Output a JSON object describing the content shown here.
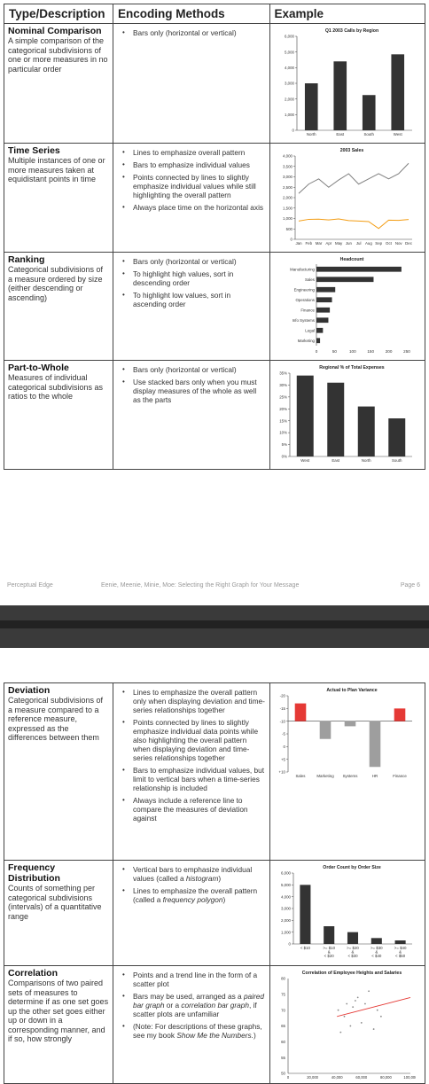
{
  "header": {
    "type": "Type/Description",
    "encoding": "Encoding Methods",
    "example": "Example"
  },
  "rows1": [
    {
      "name": "Nominal Comparison",
      "desc": "A simple comparison of the categorical subdivisions of one or more measures in no particular order",
      "methods": [
        "Bars only (horizontal or vertical)"
      ]
    },
    {
      "name": "Time Series",
      "desc": "Multiple instances of one or more measures taken at equidistant points in time",
      "methods": [
        "Lines to emphasize overall pattern",
        "Bars to emphasize individual values",
        "Points connected by lines to slightly emphasize individual values while still highlighting the overall pattern",
        "Always place time on the horizontal axis"
      ]
    },
    {
      "name": "Ranking",
      "desc": "Categorical subdivisions of a measure ordered by size (either descending or ascending)",
      "methods": [
        "Bars only (horizontal or vertical)",
        "To highlight high values, sort in descending order",
        "To highlight low values, sort in ascending order"
      ]
    },
    {
      "name": "Part-to-Whole",
      "desc": "Measures of individual categorical subdivisions as ratios to the whole",
      "methods": [
        "Bars only (horizontal or vertical)",
        "Use stacked bars only when you must display measures of the whole as well as the parts"
      ]
    }
  ],
  "rows2": [
    {
      "name": "Deviation",
      "desc": "Categorical subdivisions of a measure compared to a reference measure, expressed as the differences between them",
      "methods": [
        "Lines to emphasize the overall pattern only when displaying deviation and time-series relationships together",
        "Points connected by lines to slightly emphasize individual data points while also highlighting the overall pattern when displaying deviation and time-series relationships together",
        "Bars to emphasize individual values, but limit to vertical bars when a time-series relationship is included",
        "Always include a reference line to compare the measures of deviation against"
      ]
    },
    {
      "name": "Frequency Distribution",
      "desc": "Counts of something per categorical subdivisions (intervals) of a quantitative range",
      "methods": [
        "Vertical bars to emphasize individual values (called a histogram)",
        "Lines to emphasize the overall pattern (called a frequency polygon)"
      ]
    },
    {
      "name": "Correlation",
      "desc": "Comparisons of two paired sets of measures to determine if as one set goes up the other set goes either up or down in a corresponding manner, and if so, how strongly",
      "methods": [
        "Points and a trend line in the form of a scatter plot",
        "Bars may be used, arranged as a paired bar graph or a correlation bar graph, if scatter plots are unfamiliar",
        "(Note: For descriptions of these graphs, see my book Show Me the Numbers.)"
      ]
    }
  ],
  "footer": {
    "left": "Perceptual Edge",
    "center": "Eenie, Meenie, Minie, Moe: Selecting the Right Graph for Your Message",
    "right": "Page 6"
  },
  "chart_data": [
    {
      "type": "bar",
      "title": "Q1 2003 Calls by Region",
      "categories": [
        "North",
        "East",
        "South",
        "West"
      ],
      "values": [
        3000,
        4400,
        2250,
        4850
      ],
      "ylim": [
        0,
        6000
      ],
      "yticks": [
        "0",
        "1,000",
        "2,000",
        "3,000",
        "4,000",
        "5,000",
        "6,000"
      ],
      "color": "#333333"
    },
    {
      "type": "line",
      "title": "2003 Sales",
      "categories": [
        "Jan",
        "Feb",
        "Mar",
        "Apr",
        "May",
        "Jun",
        "Jul",
        "Aug",
        "Sep",
        "Oct",
        "Nov",
        "Dec"
      ],
      "series": [
        {
          "values": [
            2200,
            2650,
            2900,
            2500,
            2850,
            3150,
            2650,
            2900,
            3150,
            2900,
            3150,
            3650
          ],
          "color": "#808080"
        },
        {
          "values": [
            880,
            960,
            970,
            930,
            980,
            900,
            880,
            850,
            520,
            920,
            910,
            950
          ],
          "color": "#f39c12"
        }
      ],
      "ylim": [
        0,
        4000
      ],
      "yticks": [
        "0",
        "500",
        "1,000",
        "1,500",
        "2,000",
        "2,500",
        "3,000",
        "3,500",
        "4,000"
      ]
    },
    {
      "type": "bar",
      "orientation": "horizontal",
      "title": "Headcount",
      "categories": [
        "Manufacturing",
        "Sales",
        "Engineering",
        "Operations",
        "Finance",
        "Info Systems",
        "Legal",
        "Marketing"
      ],
      "values": [
        235,
        158,
        52,
        43,
        37,
        33,
        18,
        10
      ],
      "xlim": [
        0,
        250
      ],
      "xticks": [
        "0",
        "50",
        "100",
        "150",
        "200",
        "250"
      ],
      "color": "#333333"
    },
    {
      "type": "bar",
      "title": "Regional % of Total Expenses",
      "categories": [
        "West",
        "East",
        "North",
        "South"
      ],
      "values": [
        34,
        31,
        21,
        16
      ],
      "ylim": [
        0,
        35
      ],
      "yticks": [
        "0%",
        "5%",
        "10%",
        "15%",
        "20%",
        "25%",
        "30%",
        "35%"
      ],
      "color": "#333333"
    },
    {
      "type": "bar",
      "title": "Actual to Plan Variance",
      "categories": [
        "Sales",
        "Marketing",
        "Systems",
        "HR",
        "Finance"
      ],
      "values": [
        7,
        -7,
        -2,
        -18,
        5
      ],
      "ylim": [
        -20,
        10
      ],
      "yticks": [
        "+10",
        "+5",
        "0",
        "-5",
        "-10",
        "-15",
        "-20"
      ],
      "colors": [
        "#e53935",
        "#9e9e9e",
        "#9e9e9e",
        "#9e9e9e",
        "#e53935"
      ]
    },
    {
      "type": "bar",
      "title": "Order Count by Order Size",
      "categories": [
        "< $10",
        ">= $10\n&\n< $20",
        ">= $20\n&\n< $30",
        ">= $30\n&\n< $40",
        ">= $40\n&\n< $50"
      ],
      "values": [
        5000,
        1500,
        1000,
        500,
        300
      ],
      "ylim": [
        0,
        6000
      ],
      "yticks": [
        "0",
        "1,000",
        "2,000",
        "3,000",
        "4,000",
        "5,000",
        "6,000"
      ],
      "color": "#333333"
    },
    {
      "type": "scatter",
      "title": "Correlation of Employee Heights and Salaries",
      "x": [
        41000,
        43000,
        46000,
        48000,
        51000,
        53000,
        55000,
        57000,
        60000,
        63000,
        66000,
        70000,
        73000,
        76000
      ],
      "y": [
        70,
        63,
        68,
        72,
        65,
        71,
        73,
        74,
        66,
        72,
        76,
        64,
        70,
        68
      ],
      "trend": [
        [
          40000,
          68
        ],
        [
          100000,
          74
        ]
      ],
      "xlim": [
        0,
        100000
      ],
      "ylim": [
        50,
        80
      ],
      "xticks": [
        "0",
        "20,000",
        "40,000",
        "60,000",
        "80,000",
        "100,000"
      ],
      "yticks": [
        "50",
        "55",
        "60",
        "65",
        "70",
        "75",
        "80"
      ],
      "point_color": "#888888",
      "trend_color": "#e53935"
    }
  ]
}
